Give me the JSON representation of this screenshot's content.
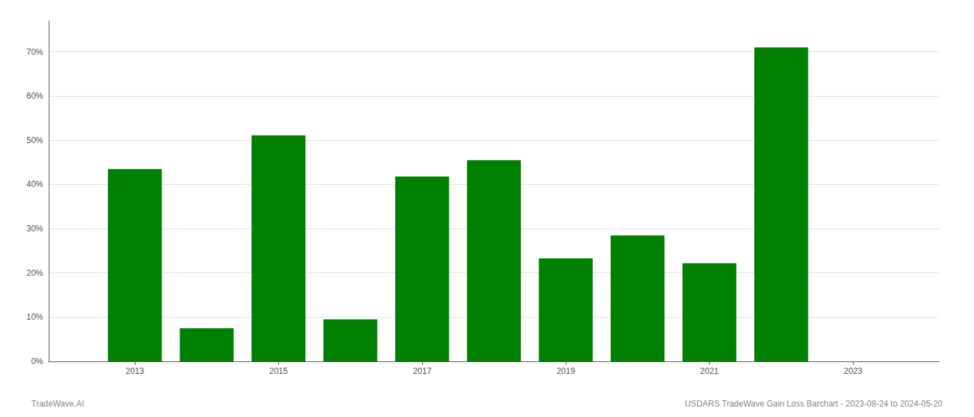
{
  "chart_data": {
    "type": "bar",
    "x": [
      2013,
      2014,
      2015,
      2016,
      2017,
      2018,
      2019,
      2020,
      2021,
      2022
    ],
    "values": [
      0.435,
      0.075,
      0.511,
      0.095,
      0.418,
      0.455,
      0.233,
      0.285,
      0.222,
      0.71
    ],
    "color": "#008000",
    "xlim": [
      2011.8,
      2024.2
    ],
    "xticks": [
      2013,
      2015,
      2017,
      2019,
      2021,
      2023
    ],
    "ylim": [
      0,
      0.77
    ],
    "yticks": [
      {
        "value": 0.0,
        "label": "0%"
      },
      {
        "value": 0.1,
        "label": "10%"
      },
      {
        "value": 0.2,
        "label": "20%"
      },
      {
        "value": 0.3,
        "label": "30%"
      },
      {
        "value": 0.4,
        "label": "40%"
      },
      {
        "value": 0.5,
        "label": "50%"
      },
      {
        "value": 0.6,
        "label": "60%"
      },
      {
        "value": 0.7,
        "label": "70%"
      }
    ],
    "grid": true,
    "annotations": [
      "TradeWave.AI",
      "USDARS TradeWave Gain Loss Barchart - 2023-08-24 to 2024-05-20"
    ]
  }
}
